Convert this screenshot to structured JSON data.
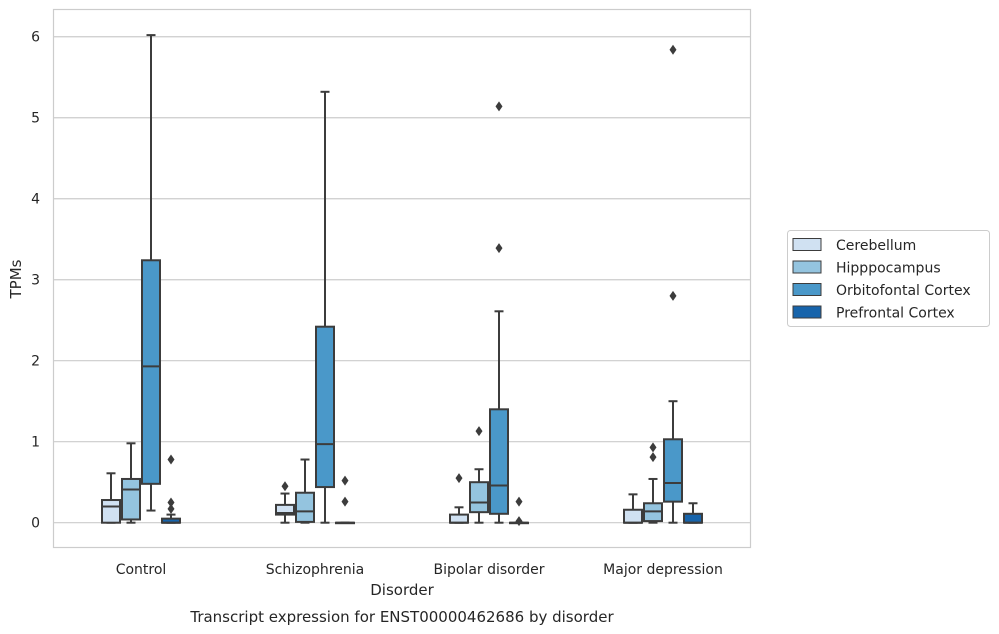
{
  "chart_data": {
    "type": "box",
    "caption": "Transcript expression for ENST00000462686 by disorder",
    "xlabel": "Disorder",
    "ylabel": "TPMs",
    "ylim": [
      -0.3,
      6.33
    ],
    "yticks": [
      0,
      1,
      2,
      3,
      4,
      5,
      6
    ],
    "grid": "horizontal",
    "legend_placement": "right",
    "categories": [
      "Control",
      "Schizophrenia",
      "Bipolar disorder",
      "Major depression"
    ],
    "series": [
      {
        "name": "Cerebellum",
        "color": "#d0e1f2",
        "boxes": [
          {
            "whislo": 0.0,
            "q1": 0.0,
            "med": 0.2,
            "q3": 0.28,
            "whishi": 0.61,
            "fliers": []
          },
          {
            "whislo": 0.0,
            "q1": 0.1,
            "med": 0.12,
            "q3": 0.22,
            "whishi": 0.36,
            "fliers": [
              0.45
            ]
          },
          {
            "whislo": 0.0,
            "q1": 0.0,
            "med": 0.0,
            "q3": 0.1,
            "whishi": 0.19,
            "fliers": [
              0.55
            ]
          },
          {
            "whislo": 0.0,
            "q1": 0.0,
            "med": 0.0,
            "q3": 0.16,
            "whishi": 0.35,
            "fliers": []
          }
        ]
      },
      {
        "name": "Hipppocampus",
        "color": "#94c4df",
        "boxes": [
          {
            "whislo": 0.0,
            "q1": 0.04,
            "med": 0.41,
            "q3": 0.54,
            "whishi": 0.98,
            "fliers": []
          },
          {
            "whislo": 0.0,
            "q1": 0.01,
            "med": 0.14,
            "q3": 0.37,
            "whishi": 0.78,
            "fliers": []
          },
          {
            "whislo": 0.0,
            "q1": 0.13,
            "med": 0.25,
            "q3": 0.5,
            "whishi": 0.66,
            "fliers": [
              1.13
            ]
          },
          {
            "whislo": 0.0,
            "q1": 0.02,
            "med": 0.14,
            "q3": 0.24,
            "whishi": 0.54,
            "fliers": [
              0.81,
              0.93
            ]
          }
        ]
      },
      {
        "name": "Orbitofontal Cortex",
        "color": "#4a98c9",
        "boxes": [
          {
            "whislo": 0.15,
            "q1": 0.48,
            "med": 1.93,
            "q3": 3.24,
            "whishi": 6.02,
            "fliers": []
          },
          {
            "whislo": 0.0,
            "q1": 0.44,
            "med": 0.97,
            "q3": 2.42,
            "whishi": 5.32,
            "fliers": []
          },
          {
            "whislo": 0.0,
            "q1": 0.11,
            "med": 0.46,
            "q3": 1.4,
            "whishi": 2.61,
            "fliers": [
              3.39,
              5.14
            ]
          },
          {
            "whislo": 0.0,
            "q1": 0.26,
            "med": 0.49,
            "q3": 1.03,
            "whishi": 1.5,
            "fliers": [
              2.8,
              5.84
            ]
          }
        ]
      },
      {
        "name": "Prefrontal Cortex",
        "color": "#1764ab",
        "boxes": [
          {
            "whislo": 0.0,
            "q1": 0.0,
            "med": 0.0,
            "q3": 0.05,
            "whishi": 0.1,
            "fliers": [
              0.17,
              0.25,
              0.78
            ]
          },
          {
            "whislo": 0.0,
            "q1": 0.0,
            "med": 0.0,
            "q3": 0.0,
            "whishi": 0.0,
            "fliers": [
              0.26,
              0.52
            ]
          },
          {
            "whislo": 0.0,
            "q1": 0.0,
            "med": 0.0,
            "q3": 0.0,
            "whishi": 0.0,
            "fliers": [
              0.02,
              0.26
            ]
          },
          {
            "whislo": 0.0,
            "q1": 0.0,
            "med": 0.0,
            "q3": 0.11,
            "whishi": 0.24,
            "fliers": []
          }
        ]
      }
    ]
  }
}
